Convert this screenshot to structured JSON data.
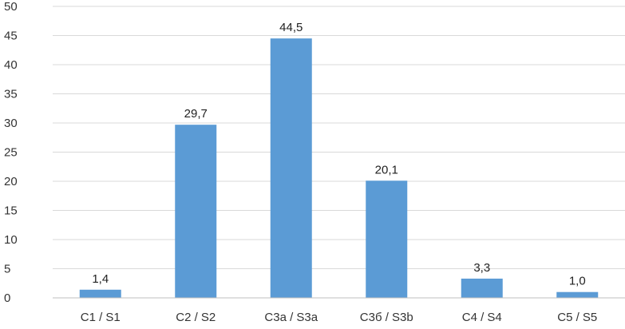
{
  "chart_data": {
    "type": "bar",
    "categories": [
      "C1 / S1",
      "C2 / S2",
      "C3a / S3a",
      "C3б / S3b",
      "C4 / S4",
      "C5 / S5"
    ],
    "values": [
      1.4,
      29.7,
      44.5,
      20.1,
      3.3,
      1.0
    ],
    "value_labels": [
      "1,4",
      "29,7",
      "44,5",
      "20,1",
      "3,3",
      "1,0"
    ],
    "y_ticks": [
      "0",
      "5",
      "10",
      "15",
      "20",
      "25",
      "30",
      "35",
      "40",
      "45",
      "50"
    ],
    "ylim": [
      0,
      50
    ],
    "grid": true,
    "legend": "none",
    "colors": {
      "bar": "#5b9bd5"
    }
  }
}
